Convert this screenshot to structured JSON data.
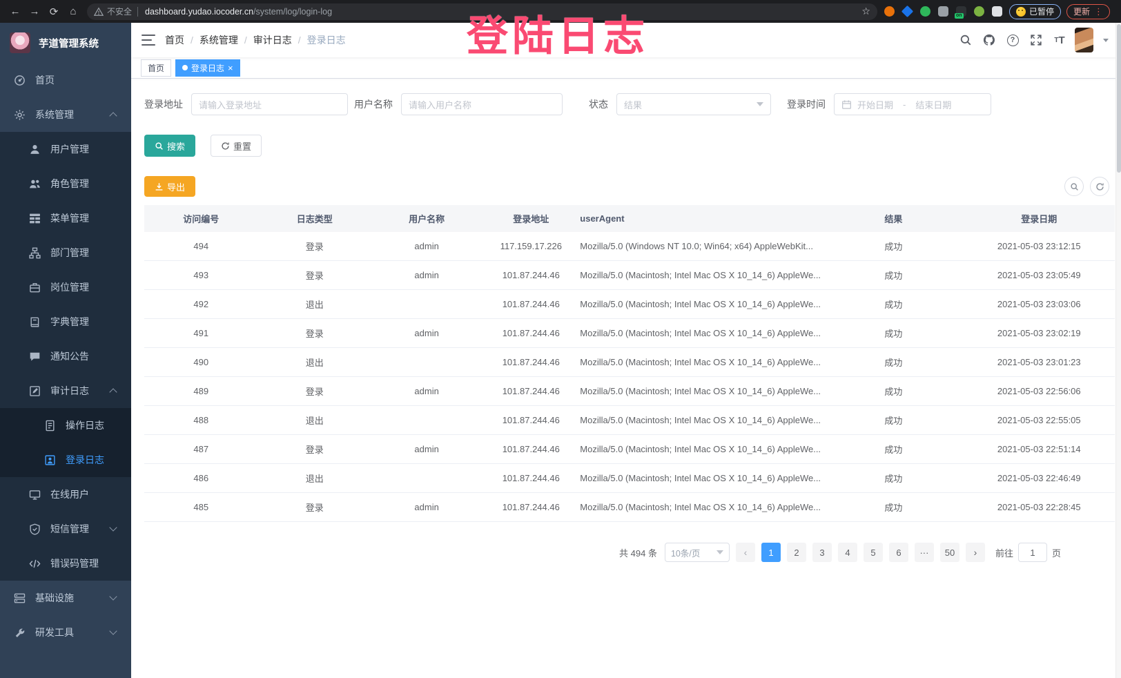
{
  "browser": {
    "security_label": "不安全",
    "url_domain": "dashboard.yudao.iocoder.cn",
    "url_path": "/system/log/login-log",
    "extensions": [
      "#e8710a",
      "#1a73e8",
      "#2fb85b",
      "#9aa0a6",
      "#2e3134",
      "#7cb342",
      "#dfe1e5"
    ],
    "extension_badge": "on",
    "paused_label": "已暂停",
    "update_label": "更新"
  },
  "watermark": "登陆日志",
  "sidebar": {
    "logo_title": "芋道管理系统",
    "menu": [
      {
        "id": "home",
        "label": "首页",
        "icon": "dashboard-icon",
        "level": 1
      },
      {
        "id": "system-mgmt",
        "label": "系统管理",
        "icon": "gear-icon",
        "level": 1,
        "arrow": "up"
      },
      {
        "id": "user-mgmt",
        "label": "用户管理",
        "icon": "user-icon",
        "level": 2
      },
      {
        "id": "role-mgmt",
        "label": "角色管理",
        "icon": "peoples-icon",
        "level": 2
      },
      {
        "id": "menu-mgmt",
        "label": "菜单管理",
        "icon": "tree-table-icon",
        "level": 2
      },
      {
        "id": "dept-mgmt",
        "label": "部门管理",
        "icon": "org-tree-icon",
        "level": 2
      },
      {
        "id": "post-mgmt",
        "label": "岗位管理",
        "icon": "post-icon",
        "level": 2
      },
      {
        "id": "dict-mgmt",
        "label": "字典管理",
        "icon": "dict-icon",
        "level": 2
      },
      {
        "id": "notice",
        "label": "通知公告",
        "icon": "message-icon",
        "level": 2
      },
      {
        "id": "audit-log",
        "label": "审计日志",
        "icon": "edit-log-icon",
        "level": 2,
        "arrow": "up"
      },
      {
        "id": "operate-log",
        "label": "操作日志",
        "icon": "form-doc-icon",
        "level": 3
      },
      {
        "id": "login-log",
        "label": "登录日志",
        "icon": "login-log-icon",
        "level": 3,
        "active": true
      },
      {
        "id": "online-user",
        "label": "在线用户",
        "icon": "monitor-icon",
        "level": 2
      },
      {
        "id": "sms-mgmt",
        "label": "短信管理",
        "icon": "shield-icon",
        "level": 2,
        "arrow": "down"
      },
      {
        "id": "error-code",
        "label": "错误码管理",
        "icon": "code-icon",
        "level": 2
      },
      {
        "id": "infra",
        "label": "基础设施",
        "icon": "server-icon",
        "level": 1,
        "arrow": "down"
      },
      {
        "id": "dev-tool",
        "label": "研发工具",
        "icon": "wrench-icon",
        "level": 1,
        "arrow": "down"
      }
    ]
  },
  "header": {
    "breadcrumb": [
      "首页",
      "系统管理",
      "审计日志",
      "登录日志"
    ]
  },
  "tags": {
    "items": [
      {
        "label": "首页",
        "active": false
      },
      {
        "label": "登录日志",
        "active": true,
        "closable": true
      }
    ]
  },
  "filters": {
    "login_address": {
      "label": "登录地址",
      "placeholder": "请输入登录地址"
    },
    "username": {
      "label": "用户名称",
      "placeholder": "请输入用户名称"
    },
    "status": {
      "label": "状态",
      "placeholder": "结果"
    },
    "login_time": {
      "label": "登录时间",
      "start_placeholder": "开始日期",
      "separator": "-",
      "end_placeholder": "结束日期"
    },
    "search_label": "搜索",
    "reset_label": "重置",
    "export_label": "导出"
  },
  "table": {
    "columns": [
      "访问编号",
      "日志类型",
      "用户名称",
      "登录地址",
      "userAgent",
      "结果",
      "登录日期"
    ],
    "rows": [
      [
        "494",
        "登录",
        "admin",
        "117.159.17.226",
        "Mozilla/5.0 (Windows NT 10.0; Win64; x64) AppleWebKit...",
        "成功",
        "2021-05-03 23:12:15"
      ],
      [
        "493",
        "登录",
        "admin",
        "101.87.244.46",
        "Mozilla/5.0 (Macintosh; Intel Mac OS X 10_14_6) AppleWe...",
        "成功",
        "2021-05-03 23:05:49"
      ],
      [
        "492",
        "退出",
        "",
        "101.87.244.46",
        "Mozilla/5.0 (Macintosh; Intel Mac OS X 10_14_6) AppleWe...",
        "成功",
        "2021-05-03 23:03:06"
      ],
      [
        "491",
        "登录",
        "admin",
        "101.87.244.46",
        "Mozilla/5.0 (Macintosh; Intel Mac OS X 10_14_6) AppleWe...",
        "成功",
        "2021-05-03 23:02:19"
      ],
      [
        "490",
        "退出",
        "",
        "101.87.244.46",
        "Mozilla/5.0 (Macintosh; Intel Mac OS X 10_14_6) AppleWe...",
        "成功",
        "2021-05-03 23:01:23"
      ],
      [
        "489",
        "登录",
        "admin",
        "101.87.244.46",
        "Mozilla/5.0 (Macintosh; Intel Mac OS X 10_14_6) AppleWe...",
        "成功",
        "2021-05-03 22:56:06"
      ],
      [
        "488",
        "退出",
        "",
        "101.87.244.46",
        "Mozilla/5.0 (Macintosh; Intel Mac OS X 10_14_6) AppleWe...",
        "成功",
        "2021-05-03 22:55:05"
      ],
      [
        "487",
        "登录",
        "admin",
        "101.87.244.46",
        "Mozilla/5.0 (Macintosh; Intel Mac OS X 10_14_6) AppleWe...",
        "成功",
        "2021-05-03 22:51:14"
      ],
      [
        "486",
        "退出",
        "",
        "101.87.244.46",
        "Mozilla/5.0 (Macintosh; Intel Mac OS X 10_14_6) AppleWe...",
        "成功",
        "2021-05-03 22:46:49"
      ],
      [
        "485",
        "登录",
        "admin",
        "101.87.244.46",
        "Mozilla/5.0 (Macintosh; Intel Mac OS X 10_14_6) AppleWe...",
        "成功",
        "2021-05-03 22:28:45"
      ]
    ]
  },
  "pagination": {
    "total_label": "共 494 条",
    "page_size_label": "10条/页",
    "pages": [
      "1",
      "2",
      "3",
      "4",
      "5",
      "6",
      "···",
      "50"
    ],
    "active_page": "1",
    "jump_prefix": "前往",
    "jump_value": "1",
    "jump_suffix": "页"
  },
  "colors": {
    "sidebar_bg": "#304156",
    "submenu_bg": "#1f2d3d",
    "active_blue": "#409eff",
    "search_button": "#2aa79b",
    "export_button": "#f5a623",
    "watermark_pink": "#fa4a72"
  }
}
